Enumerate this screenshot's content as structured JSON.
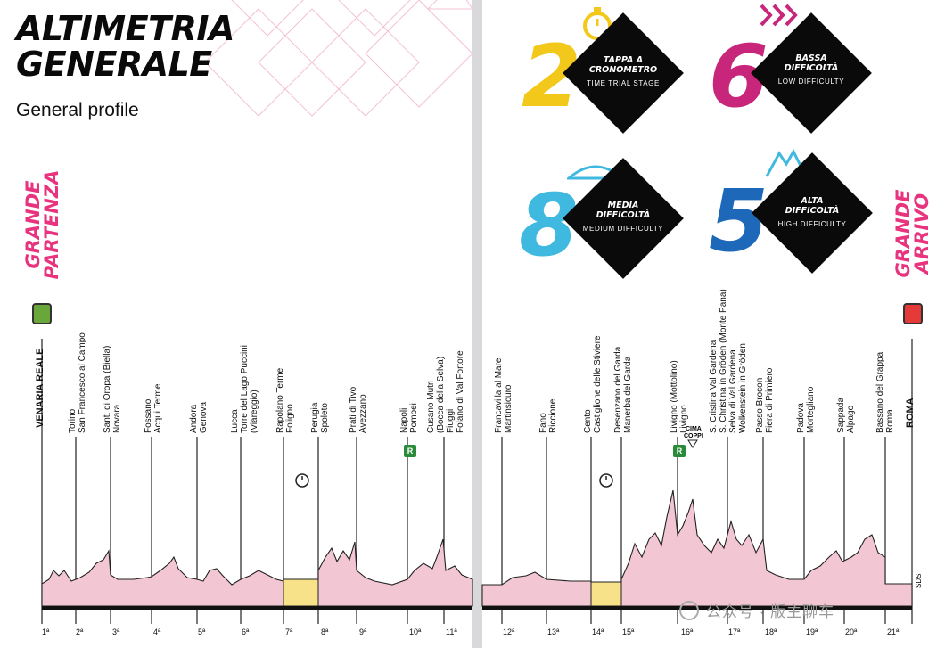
{
  "header": {
    "title_line1": "ALTIMETRIA",
    "title_line2": "GENERALE",
    "subtitle": "General profile"
  },
  "side_labels": {
    "left": "GRANDE\nPARTENZA",
    "right": "GRANDE\nARRIVO"
  },
  "stats": [
    {
      "number": "2",
      "label": "TAPPA A\nCRONOMETRO",
      "sublabel": "TIME TRIAL STAGE",
      "color": "#f2c81a",
      "icon": "stopwatch-icon"
    },
    {
      "number": "6",
      "label": "BASSA\nDIFFICOLTÀ",
      "sublabel": "LOW DIFFICULTY",
      "color": "#c8267a",
      "icon": "chevrons-icon"
    },
    {
      "number": "8",
      "label": "MEDIA\nDIFFICOLTÀ",
      "sublabel": "MEDIUM DIFFICULTY",
      "color": "#3fb9e0",
      "icon": "hill-icon"
    },
    {
      "number": "5",
      "label": "ALTA\nDIFFICOLTÀ",
      "sublabel": "HIGH DIFFICULTY",
      "color": "#1d68b8",
      "icon": "mountains-icon"
    }
  ],
  "start_city": "VENARIA REALE",
  "finish_city": "ROMA",
  "locations": [
    {
      "name": "Torino\nSan Francesco al Campo"
    },
    {
      "name": "Sant. di Oropa (Biella)\nNovara"
    },
    {
      "name": "Fossano\nAcqui Terme"
    },
    {
      "name": "Andora\nGenova"
    },
    {
      "name": "Lucca\nTorre del Lago Puccini\n(Viareggio)"
    },
    {
      "name": "Rapolano Terme\nFoligno"
    },
    {
      "name": "Perugia\nSpoleto"
    },
    {
      "name": "Prati di Tivo\nAvezzano"
    },
    {
      "name": "Napoli\nPompei"
    },
    {
      "name": "Cusano Mutri\n(Bocca della Selva)\nFiuggi\nFolano di Val Fortore"
    },
    {
      "name": "Francavilla al Mare\nMartinsicuro"
    },
    {
      "name": "Fano\nRiccione"
    },
    {
      "name": "Cento\nCastiglione delle Stiviere"
    },
    {
      "name": "Desenzano del Garda\nManerba del Garda"
    },
    {
      "name": "Livigno (Mottolino)\nLivigno"
    },
    {
      "name": "S. Cristina Val Gardena\nS. Christina in Gröden (Monte Pana)\nSelva di Val Gardena\nWolkenstein in Gröden"
    },
    {
      "name": "Passo Brocon\nFiera di Primiero"
    },
    {
      "name": "Padova\nMortegliano"
    },
    {
      "name": "Sappada\nAlpago"
    },
    {
      "name": "Bassano del Grappa\nRoma"
    }
  ],
  "cima_coppi": "CIMA\nCOPPI",
  "r_badge": "R",
  "stage_numbers": [
    "1ª",
    "2ª",
    "3ª",
    "4ª",
    "5ª",
    "6ª",
    "7ª",
    "8ª",
    "9ª",
    "10ª",
    "11ª",
    "12ª",
    "13ª",
    "14ª",
    "15ª",
    "16ª",
    "17ª",
    "18ª",
    "19ª",
    "20ª",
    "21ª"
  ],
  "sds_label": "SDS",
  "watermark": "公众号 · 版主聊车"
}
